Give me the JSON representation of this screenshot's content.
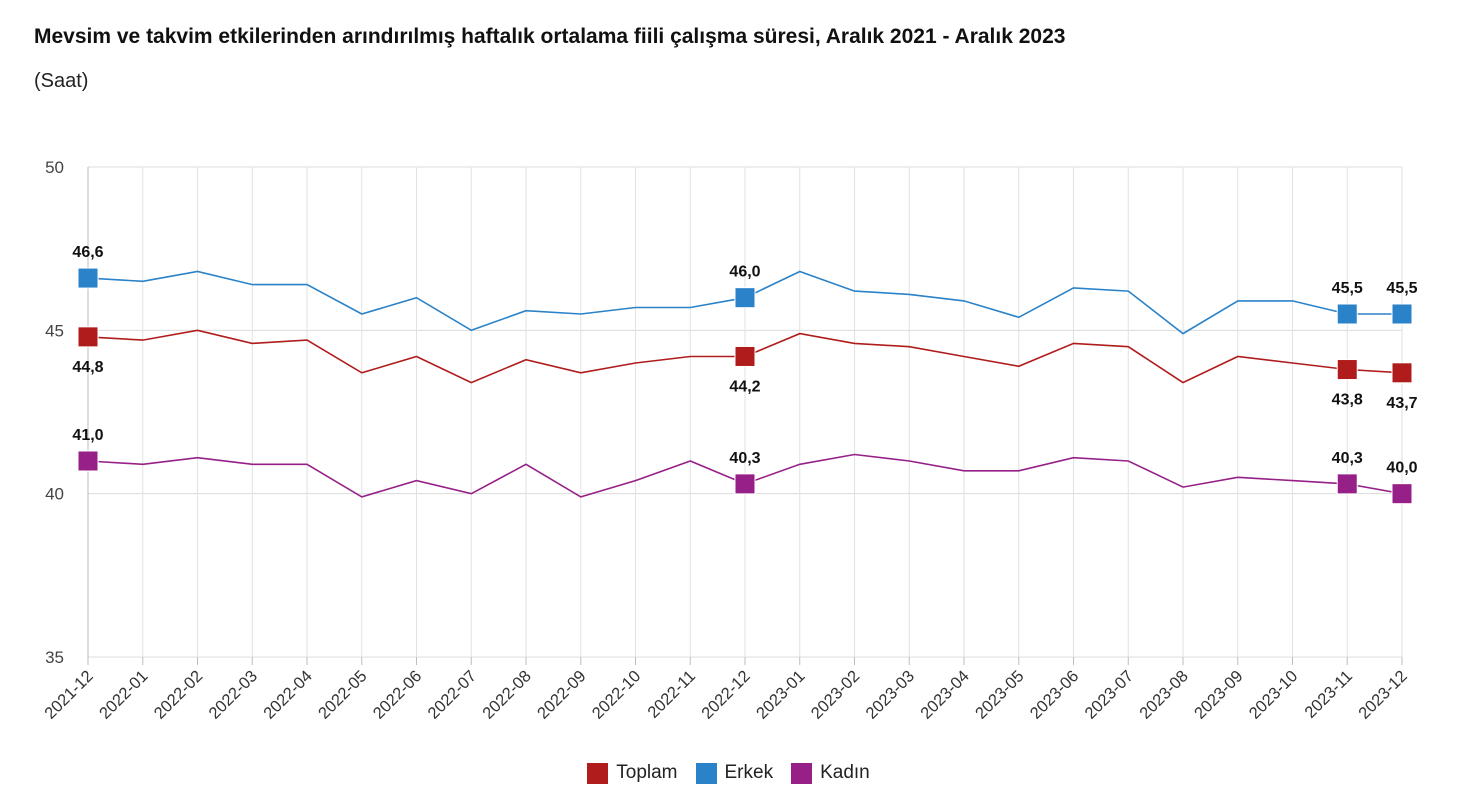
{
  "title": "Mevsim ve takvim etkilerinden arındırılmış haftalık ortalama fiili çalışma süresi, Aralık 2021 - Aralık 2023",
  "subtitle": "(Saat)",
  "chart_data": {
    "type": "line",
    "title": "Mevsim ve takvim etkilerinden arındırılmış haftalık ortalama fiili çalışma süresi, Aralık 2021 - Aralık 2023",
    "subtitle": "(Saat)",
    "xlabel": "",
    "ylabel": "",
    "ylim": [
      35,
      50
    ],
    "yticks": [
      35,
      40,
      45,
      50
    ],
    "grid": true,
    "legend_position": "bottom-center",
    "categories": [
      "2021-12",
      "2022-01",
      "2022-02",
      "2022-03",
      "2022-04",
      "2022-05",
      "2022-06",
      "2022-07",
      "2022-08",
      "2022-09",
      "2022-10",
      "2022-11",
      "2022-12",
      "2023-01",
      "2023-02",
      "2023-03",
      "2023-04",
      "2023-05",
      "2023-06",
      "2023-07",
      "2023-08",
      "2023-09",
      "2023-10",
      "2023-11",
      "2023-12"
    ],
    "series": [
      {
        "name": "Toplam",
        "color": "#b01c1c",
        "values": [
          44.8,
          44.7,
          45.0,
          44.6,
          44.7,
          43.7,
          44.2,
          43.4,
          44.1,
          43.7,
          44.0,
          44.2,
          44.2,
          44.9,
          44.6,
          44.5,
          44.2,
          43.9,
          44.6,
          44.5,
          43.4,
          44.2,
          44.0,
          43.8,
          43.7
        ],
        "labeled": [
          {
            "index": 0,
            "text": "44,8",
            "pos": "below"
          },
          {
            "index": 12,
            "text": "44,2",
            "pos": "below"
          },
          {
            "index": 23,
            "text": "43,8",
            "pos": "below"
          },
          {
            "index": 24,
            "text": "43,7",
            "pos": "below"
          }
        ]
      },
      {
        "name": "Erkek",
        "color": "#2a82c8",
        "values": [
          46.6,
          46.5,
          46.8,
          46.4,
          46.4,
          45.5,
          46.0,
          45.0,
          45.6,
          45.5,
          45.7,
          45.7,
          46.0,
          46.8,
          46.2,
          46.1,
          45.9,
          45.4,
          46.3,
          46.2,
          44.9,
          45.9,
          45.9,
          45.5,
          45.5
        ],
        "labeled": [
          {
            "index": 0,
            "text": "46,6",
            "pos": "above"
          },
          {
            "index": 12,
            "text": "46,0",
            "pos": "above"
          },
          {
            "index": 23,
            "text": "45,5",
            "pos": "above"
          },
          {
            "index": 24,
            "text": "45,5",
            "pos": "above"
          }
        ]
      },
      {
        "name": "Kadın",
        "color": "#962088",
        "values": [
          41.0,
          40.9,
          41.1,
          40.9,
          40.9,
          39.9,
          40.4,
          40.0,
          40.9,
          39.9,
          40.4,
          41.0,
          40.3,
          40.9,
          41.2,
          41.0,
          40.7,
          40.7,
          41.1,
          41.0,
          40.2,
          40.5,
          40.4,
          40.3,
          40.0
        ],
        "labeled": [
          {
            "index": 0,
            "text": "41,0",
            "pos": "above"
          },
          {
            "index": 12,
            "text": "40,3",
            "pos": "above"
          },
          {
            "index": 23,
            "text": "40,3",
            "pos": "above"
          },
          {
            "index": 24,
            "text": "40,0",
            "pos": "above"
          }
        ]
      }
    ]
  }
}
